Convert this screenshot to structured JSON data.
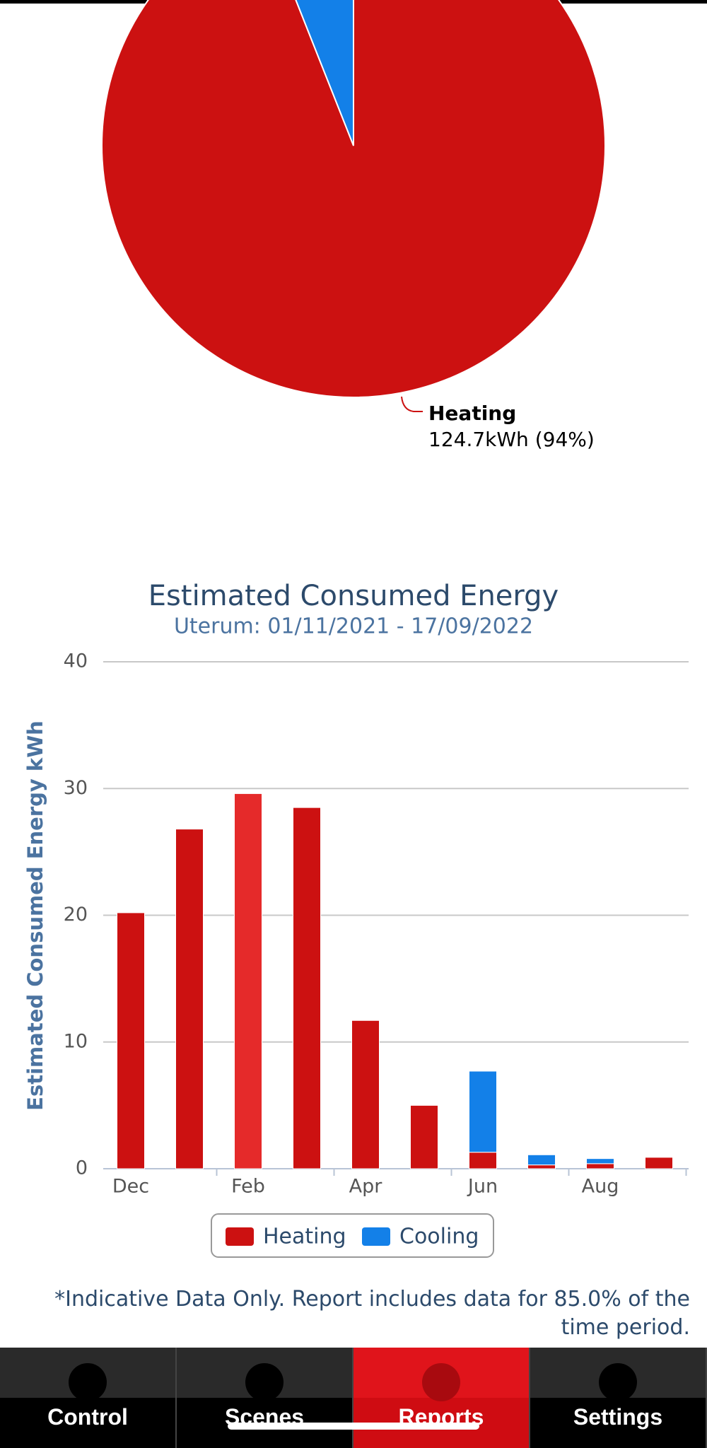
{
  "chart_data": [
    {
      "type": "pie",
      "categories": [
        "Heating",
        null
      ],
      "values": [
        94,
        6
      ],
      "value_labels": [
        "124.7kWh (94%)",
        null
      ],
      "colors": [
        "#cc1111",
        "#1380e8"
      ]
    },
    {
      "type": "bar",
      "stacked": true,
      "title": "Estimated Consumed Energy",
      "subtitle": "Uterum: 01/11/2021 - 17/09/2022",
      "y_label": "Estimated Consumed Energy kWh",
      "categories": [
        "Dec",
        null,
        "Feb",
        null,
        "Apr",
        null,
        "Jun",
        null,
        "Aug",
        null
      ],
      "series": [
        {
          "name": "Heating",
          "color": "#cc1111",
          "values": [
            20.2,
            26.8,
            29.6,
            28.5,
            11.7,
            5.0,
            1.3,
            0.3,
            0.4,
            0.9
          ]
        },
        {
          "name": "Cooling",
          "color": "#1380e8",
          "values": [
            0,
            0,
            0,
            0,
            0,
            0,
            6.4,
            0.8,
            0.4,
            0
          ]
        }
      ],
      "ylim": [
        0,
        40
      ],
      "yticks": [
        0,
        10,
        20,
        30,
        40
      ],
      "grid": true,
      "legend": "bottom"
    }
  ],
  "note": "*Indicative Data Only. Report includes data for 85.0% of the time period.",
  "nav": {
    "tabs": [
      "Control",
      "Scenes",
      "Reports",
      "Settings"
    ],
    "active": 2
  }
}
